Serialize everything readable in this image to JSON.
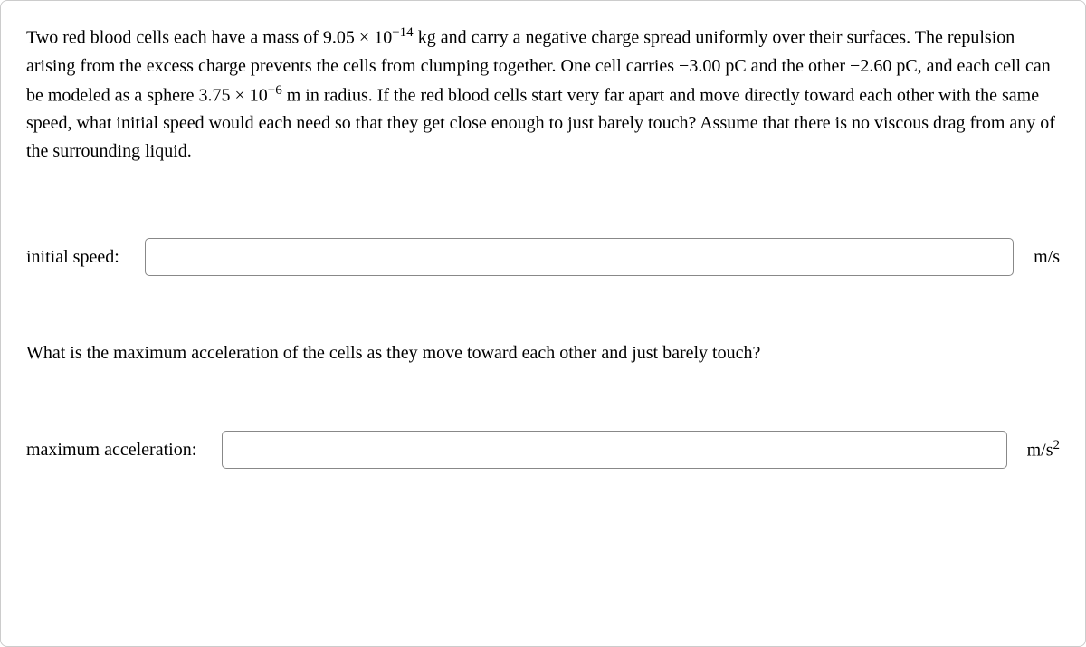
{
  "problem": {
    "text_html": "Two red blood cells each have a mass of 9.05 × 10<sup>−14</sup> kg and carry a negative charge spread uniformly over their surfaces. The repulsion arising from the excess charge prevents the cells from clumping together. One cell carries −3.00 pC and the other −2.60 pC, and each cell can be modeled as a sphere 3.75 × 10<sup>−6</sup> m in radius. If the red blood cells start very far apart and move directly toward each other with the same speed, what initial speed would each need so that they get close enough to just barely touch? Assume that there is no viscous drag from any of the surrounding liquid."
  },
  "input1": {
    "label": "initial speed:",
    "value": "",
    "unit": "m/s"
  },
  "sub_question": {
    "text": "What is the maximum acceleration of the cells as they move toward each other and just barely touch?"
  },
  "input2": {
    "label": "maximum acceleration:",
    "value": "",
    "unit_html": "m/s<sup>2</sup>"
  },
  "colors": {
    "border": "#cccccc",
    "input_border": "#888888",
    "text": "#000000",
    "background": "#ffffff"
  }
}
